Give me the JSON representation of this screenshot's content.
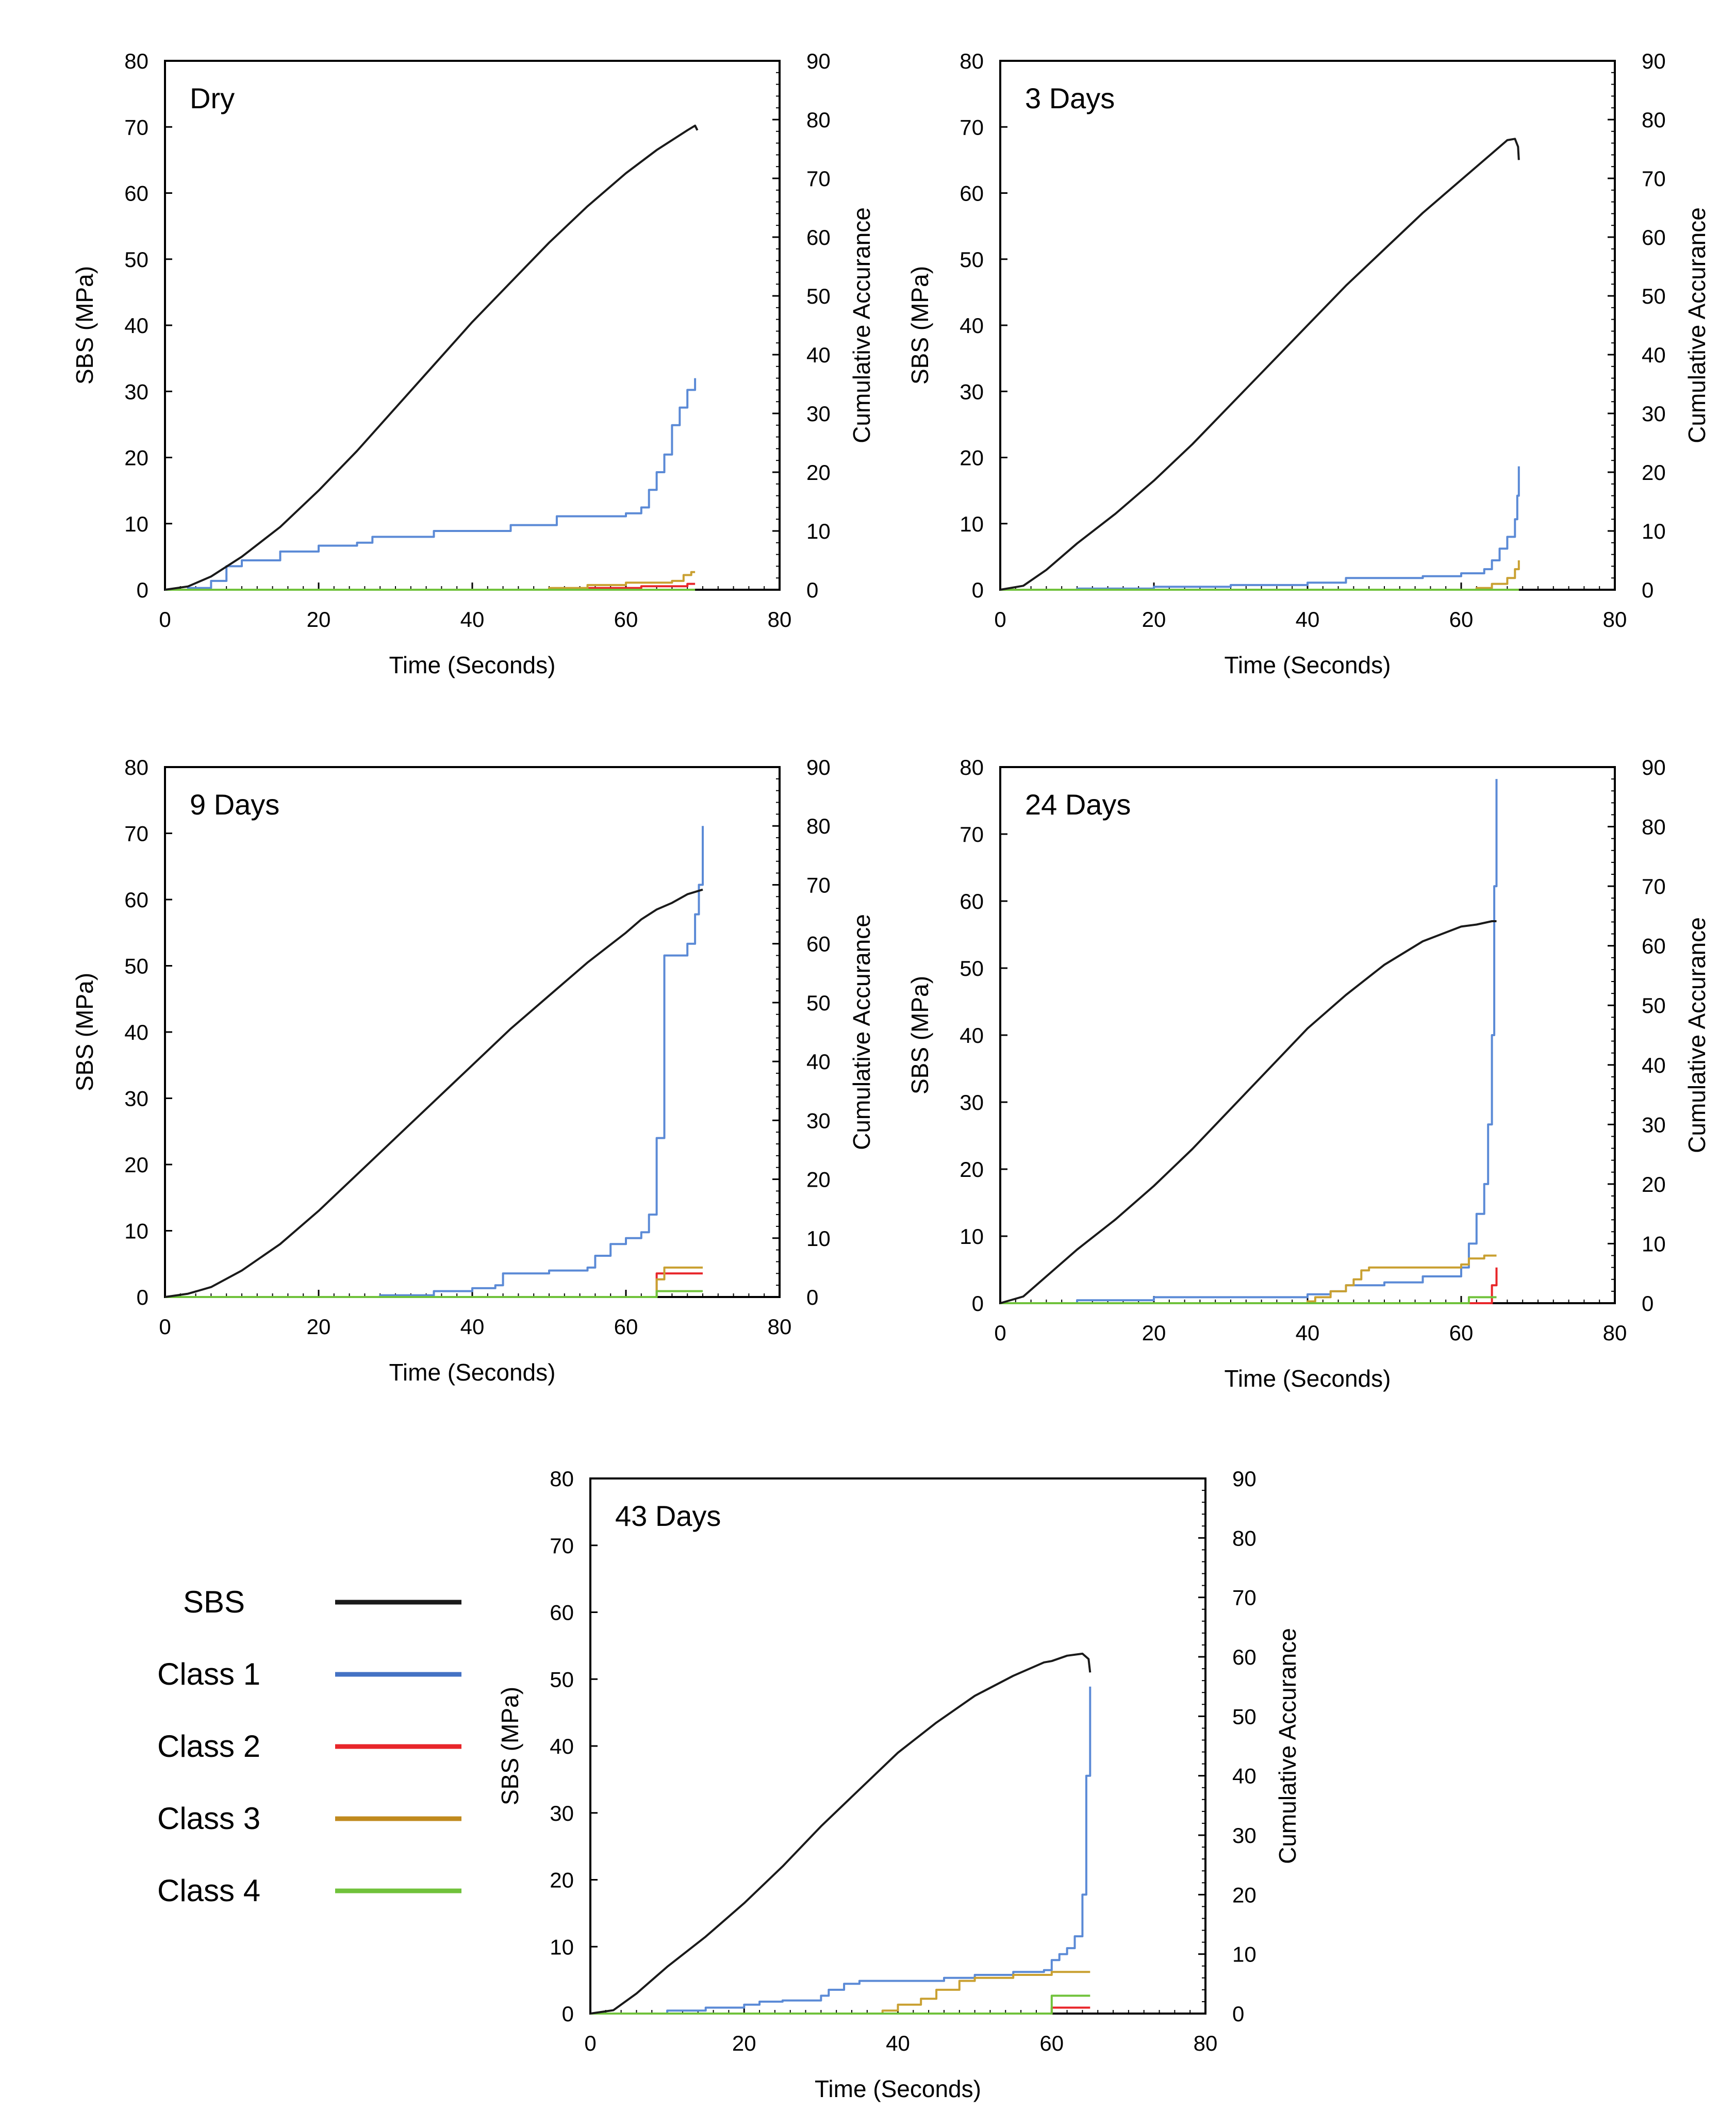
{
  "chart_data": [
    {
      "type": "line",
      "title": "Dry",
      "xlabel": "Time (Seconds)",
      "ylabel": "SBS (MPa)",
      "ylabel_right": "Cumulative Accurance",
      "xlim": [
        0,
        80
      ],
      "ylim": [
        0,
        80
      ],
      "ylim_right": [
        0,
        90
      ],
      "xticks": [
        "0",
        "20",
        "40",
        "60",
        "80"
      ],
      "yticks": [
        "0",
        "10",
        "20",
        "30",
        "40",
        "50",
        "60",
        "70",
        "80"
      ],
      "yticks_right": [
        "0",
        "10",
        "20",
        "30",
        "40",
        "50",
        "60",
        "70",
        "80",
        "90"
      ],
      "series": [
        {
          "name": "SBS",
          "axis": "left",
          "step": false,
          "x": [
            0,
            3,
            6,
            10,
            15,
            20,
            25,
            30,
            35,
            40,
            45,
            50,
            55,
            60,
            64,
            68,
            69,
            69.3
          ],
          "y": [
            0,
            0.5,
            2,
            5,
            9.5,
            15,
            21,
            27.5,
            34,
            40.5,
            46.5,
            52.5,
            58,
            63,
            66.5,
            69.5,
            70.2,
            69.5
          ]
        },
        {
          "name": "Class 1",
          "axis": "right",
          "step": true,
          "x": [
            0,
            3,
            6,
            8,
            10,
            15,
            20,
            25,
            27,
            35,
            40,
            45,
            51,
            55,
            60,
            62,
            63,
            64,
            65,
            66,
            67,
            68,
            69
          ],
          "y": [
            0,
            0.3,
            1.5,
            4,
            5,
            6.5,
            7.5,
            8,
            9,
            10,
            10,
            11,
            12.5,
            12.5,
            13,
            14,
            17,
            20,
            23,
            28,
            31,
            34,
            36
          ]
        },
        {
          "name": "Class 2",
          "axis": "right",
          "step": true,
          "x": [
            0,
            55,
            62,
            68,
            69
          ],
          "y": [
            0,
            0.3,
            0.6,
            1,
            1
          ]
        },
        {
          "name": "Class 3",
          "axis": "right",
          "step": true,
          "x": [
            0,
            50,
            55,
            60,
            66,
            67.5,
            68.5,
            69
          ],
          "y": [
            0,
            0.3,
            0.8,
            1.2,
            1.5,
            2.5,
            3,
            3
          ]
        },
        {
          "name": "Class 4",
          "axis": "right",
          "step": true,
          "x": [
            0,
            69
          ],
          "y": [
            0,
            0
          ]
        }
      ]
    },
    {
      "type": "line",
      "title": "3 Days",
      "xlabel": "Time (Seconds)",
      "ylabel": "SBS (MPa)",
      "ylabel_right": "Cumulative Accurance",
      "xlim": [
        0,
        80
      ],
      "ylim": [
        0,
        80
      ],
      "ylim_right": [
        0,
        90
      ],
      "xticks": [
        "0",
        "20",
        "40",
        "60",
        "80"
      ],
      "yticks": [
        "0",
        "10",
        "20",
        "30",
        "40",
        "50",
        "60",
        "70",
        "80"
      ],
      "yticks_right": [
        "0",
        "10",
        "20",
        "30",
        "40",
        "50",
        "60",
        "70",
        "80",
        "90"
      ],
      "series": [
        {
          "name": "SBS",
          "axis": "left",
          "step": false,
          "x": [
            0,
            3,
            6,
            10,
            15,
            20,
            25,
            30,
            35,
            40,
            45,
            50,
            55,
            60,
            64,
            66,
            67,
            67.4,
            67.5
          ],
          "y": [
            0,
            0.6,
            3,
            7,
            11.5,
            16.5,
            22,
            28,
            34,
            40,
            46,
            51.5,
            57,
            62,
            66,
            68,
            68.2,
            67,
            65
          ]
        },
        {
          "name": "Class 1",
          "axis": "right",
          "step": true,
          "x": [
            0,
            10,
            20,
            30,
            40,
            45,
            50,
            55,
            60,
            63,
            64,
            65,
            66,
            67,
            67.3,
            67.5
          ],
          "y": [
            0,
            0.2,
            0.5,
            0.8,
            1.2,
            2,
            2,
            2.3,
            2.8,
            3.5,
            5,
            7,
            9,
            12,
            16,
            21
          ]
        },
        {
          "name": "Class 2",
          "axis": "right",
          "step": true,
          "x": [
            0,
            67.5
          ],
          "y": [
            0,
            0
          ]
        },
        {
          "name": "Class 3",
          "axis": "right",
          "step": true,
          "x": [
            0,
            62,
            64,
            66,
            67,
            67.5
          ],
          "y": [
            0,
            0.3,
            1,
            2,
            3.5,
            5
          ]
        },
        {
          "name": "Class 4",
          "axis": "right",
          "step": true,
          "x": [
            0,
            67.5
          ],
          "y": [
            0,
            0
          ]
        }
      ]
    },
    {
      "type": "line",
      "title": "9 Days",
      "xlabel": "Time (Seconds)",
      "ylabel": "SBS (MPa)",
      "ylabel_right": "Cumulative Accurance",
      "xlim": [
        0,
        80
      ],
      "ylim": [
        0,
        80
      ],
      "ylim_right": [
        0,
        90
      ],
      "xticks": [
        "0",
        "20",
        "40",
        "60",
        "80"
      ],
      "yticks": [
        "0",
        "10",
        "20",
        "30",
        "40",
        "50",
        "60",
        "70",
        "80"
      ],
      "yticks_right": [
        "0",
        "10",
        "20",
        "30",
        "40",
        "50",
        "60",
        "70",
        "80",
        "90"
      ],
      "series": [
        {
          "name": "SBS",
          "axis": "left",
          "step": false,
          "x": [
            0,
            3,
            6,
            10,
            15,
            20,
            25,
            30,
            35,
            40,
            45,
            50,
            55,
            60,
            62,
            64,
            66,
            68,
            70
          ],
          "y": [
            0,
            0.5,
            1.5,
            4,
            8,
            13,
            18.5,
            24,
            29.5,
            35,
            40.5,
            45.5,
            50.5,
            55,
            57,
            58.5,
            59.5,
            60.8,
            61.5
          ]
        },
        {
          "name": "Class 1",
          "axis": "right",
          "step": true,
          "x": [
            0,
            20,
            28,
            35,
            40,
            43,
            44,
            50,
            55,
            56,
            58,
            60,
            62,
            63,
            64,
            65,
            68,
            69,
            69.5,
            70
          ],
          "y": [
            0,
            0,
            0.3,
            1,
            1.5,
            2,
            4,
            4.5,
            5,
            7,
            9,
            10,
            11,
            14,
            27,
            58,
            60,
            65,
            70,
            80
          ]
        },
        {
          "name": "Class 2",
          "axis": "right",
          "step": true,
          "x": [
            0,
            63,
            64,
            70
          ],
          "y": [
            0,
            0,
            4,
            4
          ]
        },
        {
          "name": "Class 3",
          "axis": "right",
          "step": true,
          "x": [
            0,
            63,
            64,
            65,
            70
          ],
          "y": [
            0,
            0,
            3,
            5,
            5
          ]
        },
        {
          "name": "Class 4",
          "axis": "right",
          "step": true,
          "x": [
            0,
            63.5,
            64,
            70
          ],
          "y": [
            0,
            0,
            1,
            1
          ]
        }
      ]
    },
    {
      "type": "line",
      "title": "24 Days",
      "xlabel": "Time (Seconds)",
      "ylabel": "SBS (MPa)",
      "ylabel_right": "Cumulative Accurance",
      "xlim": [
        0,
        80
      ],
      "ylim": [
        0,
        80
      ],
      "ylim_right": [
        0,
        90
      ],
      "xticks": [
        "0",
        "20",
        "40",
        "60",
        "80"
      ],
      "yticks": [
        "0",
        "10",
        "20",
        "30",
        "40",
        "50",
        "60",
        "70",
        "80"
      ],
      "yticks_right": [
        "0",
        "10",
        "20",
        "30",
        "40",
        "50",
        "60",
        "70",
        "80",
        "90"
      ],
      "series": [
        {
          "name": "SBS",
          "axis": "left",
          "step": false,
          "x": [
            0,
            3,
            6,
            10,
            15,
            20,
            25,
            30,
            35,
            40,
            45,
            50,
            55,
            60,
            62,
            64,
            64.6
          ],
          "y": [
            0,
            1,
            4,
            8,
            12.5,
            17.5,
            23,
            29,
            35,
            41,
            46,
            50.5,
            54,
            56.2,
            56.5,
            57,
            57
          ]
        },
        {
          "name": "Class 1",
          "axis": "right",
          "step": true,
          "x": [
            0,
            10,
            20,
            30,
            40,
            43,
            45,
            50,
            55,
            60,
            61,
            62,
            63,
            63.5,
            64,
            64.3,
            64.6
          ],
          "y": [
            0,
            0.5,
            1,
            1,
            1.5,
            2,
            3,
            3.5,
            4.5,
            6,
            10,
            15,
            20,
            30,
            45,
            70,
            88
          ]
        },
        {
          "name": "Class 2",
          "axis": "right",
          "step": true,
          "x": [
            0,
            63.5,
            64,
            64.6
          ],
          "y": [
            0,
            0,
            3,
            6
          ]
        },
        {
          "name": "Class 3",
          "axis": "right",
          "step": true,
          "x": [
            0,
            40,
            41,
            43,
            45,
            46,
            47,
            48,
            50,
            60,
            61,
            63,
            64.6
          ],
          "y": [
            0,
            0.3,
            1,
            2,
            3,
            4,
            5.5,
            6,
            6,
            6.5,
            7.5,
            8,
            8
          ]
        },
        {
          "name": "Class 4",
          "axis": "right",
          "step": true,
          "x": [
            0,
            60,
            61,
            64.6
          ],
          "y": [
            0,
            0,
            1,
            1
          ]
        }
      ]
    },
    {
      "type": "line",
      "title": "43 Days",
      "xlabel": "Time (Seconds)",
      "ylabel": "SBS (MPa)",
      "ylabel_right": "Cumulative Accurance",
      "xlim": [
        0,
        80
      ],
      "ylim": [
        0,
        80
      ],
      "ylim_right": [
        0,
        90
      ],
      "xticks": [
        "0",
        "20",
        "40",
        "60",
        "80"
      ],
      "yticks": [
        "0",
        "10",
        "20",
        "30",
        "40",
        "50",
        "60",
        "70",
        "80"
      ],
      "yticks_right": [
        "0",
        "10",
        "20",
        "30",
        "40",
        "50",
        "60",
        "70",
        "80",
        "90"
      ],
      "series": [
        {
          "name": "SBS",
          "axis": "left",
          "step": false,
          "x": [
            0,
            3,
            6,
            10,
            15,
            20,
            25,
            30,
            35,
            40,
            45,
            50,
            55,
            59,
            60,
            62,
            64,
            64.8,
            65
          ],
          "y": [
            0,
            0.5,
            3,
            7,
            11.5,
            16.5,
            22,
            28,
            33.5,
            39,
            43.5,
            47.5,
            50.5,
            52.5,
            52.7,
            53.5,
            53.8,
            53,
            51
          ]
        },
        {
          "name": "Class 1",
          "axis": "right",
          "step": true,
          "x": [
            0,
            10,
            15,
            20,
            22,
            25,
            30,
            31,
            33,
            35,
            40,
            45,
            46,
            50,
            55,
            59,
            60,
            61,
            62,
            63,
            64,
            64.5,
            65
          ],
          "y": [
            0,
            0.5,
            1,
            1.5,
            2,
            2.2,
            3,
            4,
            5,
            5.5,
            5.5,
            5.5,
            6,
            6.5,
            7,
            7.3,
            9,
            10,
            11,
            13,
            20,
            40,
            55
          ]
        },
        {
          "name": "Class 2",
          "axis": "right",
          "step": true,
          "x": [
            0,
            59.5,
            60,
            65
          ],
          "y": [
            0,
            0,
            1,
            1
          ]
        },
        {
          "name": "Class 3",
          "axis": "right",
          "step": true,
          "x": [
            0,
            35,
            38,
            40,
            43,
            45,
            48,
            50,
            55,
            60,
            65
          ],
          "y": [
            0,
            0,
            0.5,
            1.5,
            2.5,
            4,
            5.5,
            6,
            6.5,
            7,
            7
          ]
        },
        {
          "name": "Class 4",
          "axis": "right",
          "step": true,
          "x": [
            0,
            59.5,
            60,
            65
          ],
          "y": [
            0,
            0,
            3,
            3
          ]
        }
      ]
    }
  ],
  "legend": {
    "items": [
      {
        "name": "SBS",
        "color": "#1a1a1a"
      },
      {
        "name": "Class 1",
        "color": "#4472c4"
      },
      {
        "name": "Class 2",
        "color": "#e8262a"
      },
      {
        "name": "Class 3",
        "color": "#c08a1e"
      },
      {
        "name": "Class 4",
        "color": "#70c23b"
      }
    ]
  },
  "colors": {
    "SBS": "#1a1a1a",
    "Class 1": "#5b8ad6",
    "Class 2": "#e8262a",
    "Class 3": "#c9a031",
    "Class 4": "#70c23b"
  }
}
